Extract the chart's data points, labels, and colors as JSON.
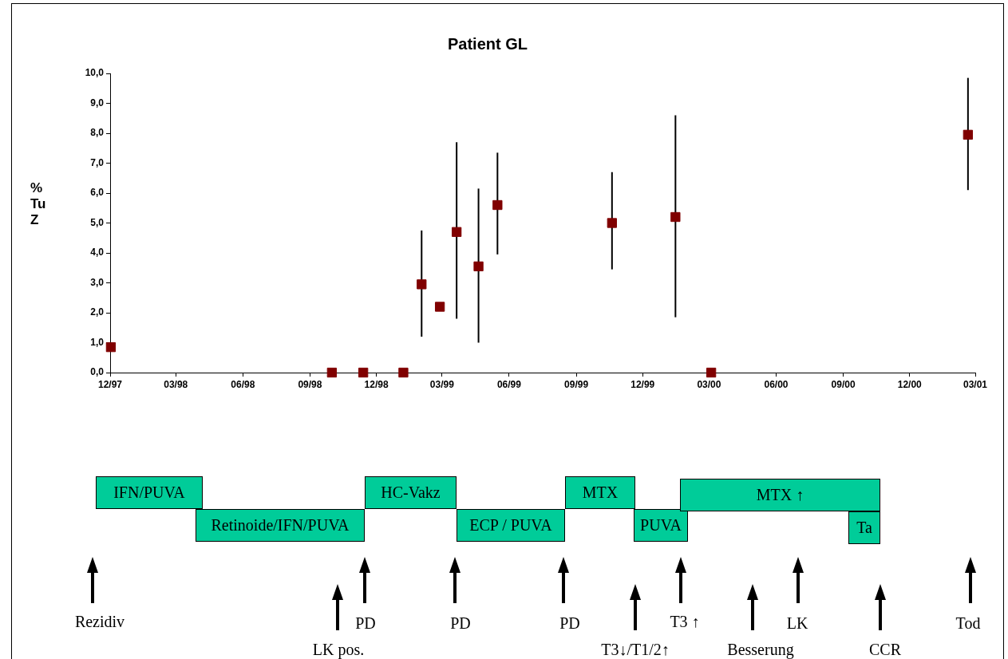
{
  "chart_data": {
    "type": "scatter",
    "title": "Patient GL",
    "ylabel": "% Tu Z",
    "marker": "square",
    "x": [
      "1997-12-02",
      "1998-10-01",
      "1998-11-13",
      "1999-01-07",
      "1999-02-01",
      "1999-02-26",
      "1999-03-21",
      "1999-04-20",
      "1999-05-16",
      "1999-10-20",
      "2000-01-15",
      "2000-03-04",
      "2001-02-19"
    ],
    "series": [
      {
        "color": "#800000",
        "values": [
          0.85,
          0,
          0,
          0,
          2.95,
          2.2,
          4.7,
          3.55,
          5.6,
          5.0,
          5.2,
          0,
          7.95
        ],
        "errors": [
          null,
          null,
          null,
          null,
          [
            1.2,
            4.75
          ],
          null,
          [
            1.8,
            7.7
          ],
          [
            1.0,
            6.15
          ],
          [
            3.95,
            7.35
          ],
          [
            3.45,
            6.7
          ],
          [
            1.85,
            8.6
          ],
          null,
          [
            6.1,
            9.85
          ]
        ]
      }
    ],
    "xlim": [
      "1997-12",
      "2001-03"
    ],
    "xticks": [
      {
        "value": "1997-12",
        "label": "12/97"
      },
      {
        "value": "1998-03",
        "label": "03/98"
      },
      {
        "value": "1998-06",
        "label": "06/98"
      },
      {
        "value": "1998-09",
        "label": "09/98"
      },
      {
        "value": "1998-12",
        "label": "12/98"
      },
      {
        "value": "1999-03",
        "label": "03/99"
      },
      {
        "value": "1999-06",
        "label": "06/99"
      },
      {
        "value": "1999-09",
        "label": "09/99"
      },
      {
        "value": "1999-12",
        "label": "12/99"
      },
      {
        "value": "2000-03",
        "label": "03/00"
      },
      {
        "value": "2000-06",
        "label": "06/00"
      },
      {
        "value": "2000-09",
        "label": "09/00"
      },
      {
        "value": "2000-12",
        "label": "12/00"
      },
      {
        "value": "2001-03",
        "label": "03/01"
      }
    ],
    "ylim": [
      0,
      10
    ],
    "yticks": [
      {
        "value": 0,
        "label": "0,0"
      },
      {
        "value": 1,
        "label": "1,0"
      },
      {
        "value": 2,
        "label": "2,0"
      },
      {
        "value": 3,
        "label": "3,0"
      },
      {
        "value": 4,
        "label": "4,0"
      },
      {
        "value": 5,
        "label": "5,0"
      },
      {
        "value": 6,
        "label": "6,0"
      },
      {
        "value": 7,
        "label": "7,0"
      },
      {
        "value": 8,
        "label": "8,0"
      },
      {
        "value": 9,
        "label": "9,0"
      },
      {
        "value": 10,
        "label": "10,0"
      }
    ],
    "annotations": [
      "IFN/PUVA",
      "Retinoide/IFN/PUVA",
      "HC-Vakz",
      "ECP / PUVA",
      "MTX",
      "PUVA",
      "MTX ↑",
      "Ta",
      "Rezidiv",
      "LK pos.",
      "PD",
      "PD",
      "PD",
      "T3↓/T1/2↑",
      "T3 ↑",
      "Besserung",
      "LK",
      "CCR",
      "Tod"
    ]
  }
}
